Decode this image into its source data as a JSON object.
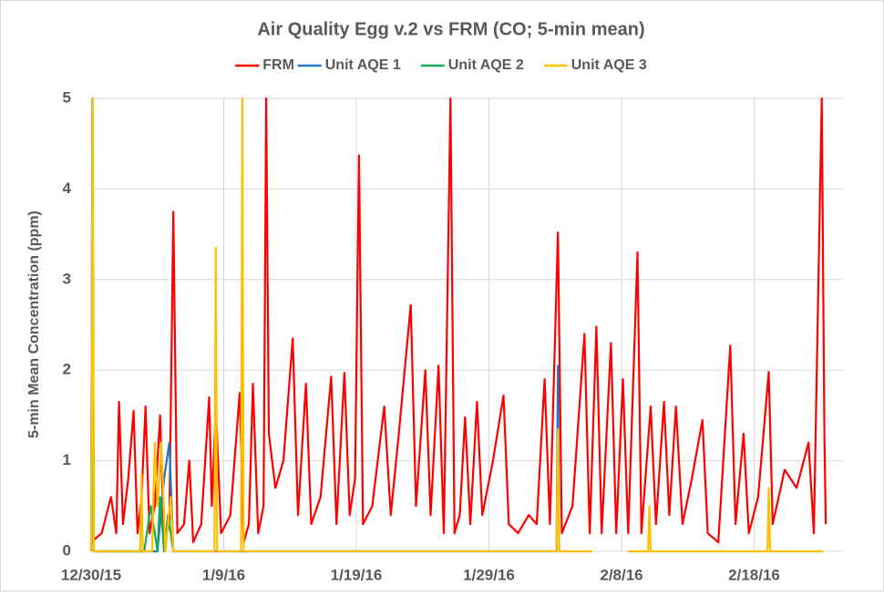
{
  "chart_data": {
    "type": "line",
    "title": "Air Quality Egg v.2 vs FRM (CO; 5-min mean)",
    "y_label": "5-min Mean Concentration (ppm)",
    "xlim": [
      0,
      56.7
    ],
    "xticks": [
      {
        "value": 0,
        "label": "12/30/15"
      },
      {
        "value": 10,
        "label": "1/9/16"
      },
      {
        "value": 20,
        "label": "1/19/16"
      },
      {
        "value": 30,
        "label": "1/29/16"
      },
      {
        "value": 40,
        "label": "2/8/16"
      },
      {
        "value": 50,
        "label": "2/18/16"
      }
    ],
    "ylim": [
      0,
      5
    ],
    "yticks": [
      0,
      1,
      2,
      3,
      4,
      5
    ],
    "grid": true,
    "legend": "top",
    "series": [
      {
        "name": "FRM",
        "color": "#ff0000",
        "x": [
          0,
          0.8,
          1.5,
          1.9,
          2.1,
          2.4,
          2.8,
          3.2,
          3.5,
          3.8,
          4.1,
          4.4,
          4.8,
          5.2,
          5.5,
          5.9,
          6.2,
          6.5,
          7.0,
          7.4,
          7.7,
          8.3,
          8.9,
          9.1,
          9.4,
          9.8,
          10.5,
          11.2,
          11.5,
          11.9,
          12.2,
          12.6,
          13.0,
          13.2,
          13.4,
          13.9,
          14.5,
          15.2,
          15.6,
          16.2,
          16.6,
          17.3,
          18.1,
          18.5,
          19.1,
          19.5,
          19.9,
          20.2,
          20.5,
          21.2,
          22.1,
          22.6,
          23.2,
          24.1,
          24.5,
          25.2,
          25.6,
          26.2,
          26.6,
          27.1,
          27.4,
          27.8,
          28.2,
          28.6,
          29.1,
          29.5,
          30.3,
          31.1,
          31.5,
          32.2,
          33.0,
          33.6,
          34.2,
          34.6,
          35.2,
          35.5,
          36.3,
          37.2,
          37.6,
          38.1,
          38.5,
          39.2,
          39.6,
          40.1,
          40.5,
          41.2,
          41.5,
          42.2,
          42.6,
          43.2,
          43.6,
          44.1,
          44.6,
          45.3,
          46.1,
          46.5,
          47.3,
          48.2,
          48.6,
          49.2,
          49.6,
          50.3,
          51.1,
          51.4,
          52.3,
          53.2,
          54.1,
          54.5,
          55.1,
          55.3,
          55.4
        ],
        "values": [
          0.1,
          0.2,
          0.6,
          0.2,
          1.65,
          0.3,
          0.8,
          1.55,
          0.2,
          0.6,
          1.6,
          0.2,
          0.5,
          1.5,
          0.1,
          0.3,
          3.75,
          0.2,
          0.3,
          1.0,
          0.1,
          0.3,
          1.7,
          0.5,
          1.6,
          0.2,
          0.4,
          1.75,
          0.1,
          0.3,
          1.85,
          0.2,
          0.5,
          5,
          1.3,
          0.7,
          1.0,
          2.35,
          0.4,
          1.85,
          0.3,
          0.6,
          1.93,
          0.3,
          1.97,
          0.4,
          0.8,
          4.37,
          0.3,
          0.5,
          1.6,
          0.4,
          1.3,
          2.72,
          0.5,
          2.0,
          0.4,
          2.05,
          0.2,
          5,
          0.2,
          0.4,
          1.48,
          0.3,
          1.65,
          0.4,
          1.0,
          1.72,
          0.3,
          0.2,
          0.4,
          0.3,
          1.9,
          0.3,
          3.52,
          0.2,
          0.5,
          2.4,
          0.2,
          2.48,
          0.2,
          2.3,
          0.2,
          1.9,
          0.2,
          3.3,
          0.2,
          1.6,
          0.3,
          1.65,
          0.4,
          1.6,
          0.3,
          0.8,
          1.45,
          0.2,
          0.1,
          2.27,
          0.3,
          1.3,
          0.2,
          0.6,
          1.98,
          0.3,
          0.9,
          0.7,
          1.2,
          0.2,
          5,
          1.3,
          0.3
        ]
      },
      {
        "name": "Unit AQE 1",
        "color": "#1f77c4",
        "x": [
          0,
          0.1,
          0.2,
          5.0,
          5.5,
          5.9,
          6.2,
          35.1,
          35.2,
          35.3
        ],
        "values": [
          0,
          5,
          0,
          0,
          0.8,
          1.2,
          0,
          0,
          2.05,
          0
        ]
      },
      {
        "name": "Unit AQE 2",
        "color": "#1aaa55",
        "x": [
          0,
          0.1,
          0.2,
          4.0,
          4.5,
          5.0,
          5.2,
          5.5,
          5.8,
          6.2,
          6.5
        ],
        "values": [
          0,
          5,
          0,
          0,
          0.5,
          0,
          0.6,
          0,
          0.4,
          0,
          0
        ]
      },
      {
        "name": "Unit AQE 3",
        "color": "#ffc000",
        "x": [
          0,
          0.1,
          0.2,
          3.7,
          3.8,
          3.9,
          4.6,
          4.8,
          5.0,
          5.3,
          5.6,
          6.0,
          6.2,
          9.3,
          9.4,
          9.5,
          11.3,
          11.4,
          11.5,
          35.1,
          35.2,
          35.3,
          37.8,
          39,
          40.5,
          42.0,
          42.1,
          42.2,
          51.0,
          51.1,
          51.2,
          55.2
        ],
        "values": [
          0,
          5,
          0,
          0,
          0.85,
          0,
          0,
          1.2,
          0.5,
          1.2,
          0,
          0.6,
          0,
          0,
          3.35,
          0,
          0,
          5,
          0,
          0,
          1.35,
          0,
          0,
          null,
          0,
          0,
          0.5,
          0,
          0,
          0.7,
          0,
          0
        ]
      }
    ]
  }
}
